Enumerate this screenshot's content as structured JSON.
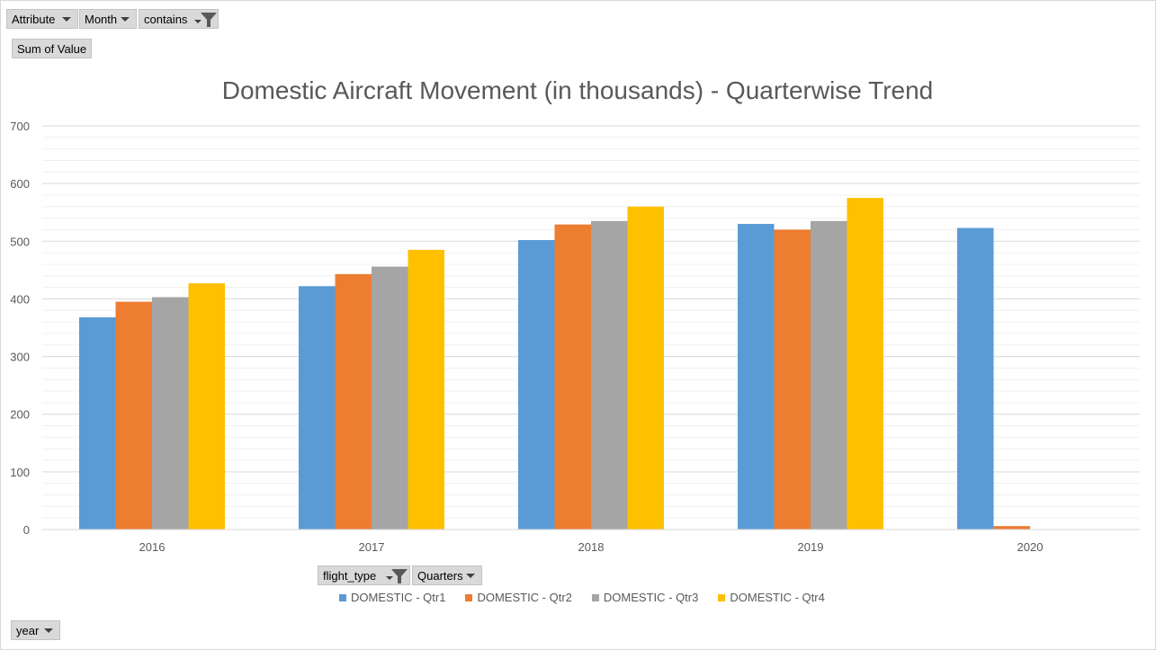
{
  "pivot_fields": {
    "attribute_label": "Attribute",
    "month_label": "Month",
    "contains_label": "contains",
    "sum_of_value_label": "Sum of Value",
    "flight_type_label": "flight_type",
    "quarters_label": "Quarters",
    "year_label": "year"
  },
  "icons": {
    "dropdown": "chevron-down-icon",
    "filter": "funnel-filter-icon"
  },
  "colors": {
    "qtr1": "#5b9bd5",
    "qtr2": "#ed7d31",
    "qtr3": "#a5a5a5",
    "qtr4": "#ffc000",
    "gridline": "#d9d9d9",
    "axis_text": "#595959"
  },
  "chart_data": {
    "type": "bar",
    "title": "Domestic Aircraft Movement (in thousands) - Quarterwise Trend",
    "xlabel": "",
    "ylabel": "",
    "categories": [
      "2016",
      "2017",
      "2018",
      "2019",
      "2020"
    ],
    "ylim": [
      0,
      700
    ],
    "yticks": [
      "0",
      "100",
      "200",
      "300",
      "400",
      "500",
      "600",
      "700"
    ],
    "grid": true,
    "legend_position": "bottom",
    "series": [
      {
        "name": "DOMESTIC - Qtr1",
        "values": [
          368,
          422,
          502,
          530,
          523
        ]
      },
      {
        "name": "DOMESTIC - Qtr2",
        "values": [
          395,
          443,
          529,
          520,
          6
        ]
      },
      {
        "name": "DOMESTIC - Qtr3",
        "values": [
          403,
          456,
          535,
          535,
          null
        ]
      },
      {
        "name": "DOMESTIC - Qtr4",
        "values": [
          427,
          485,
          560,
          575,
          null
        ]
      }
    ]
  }
}
